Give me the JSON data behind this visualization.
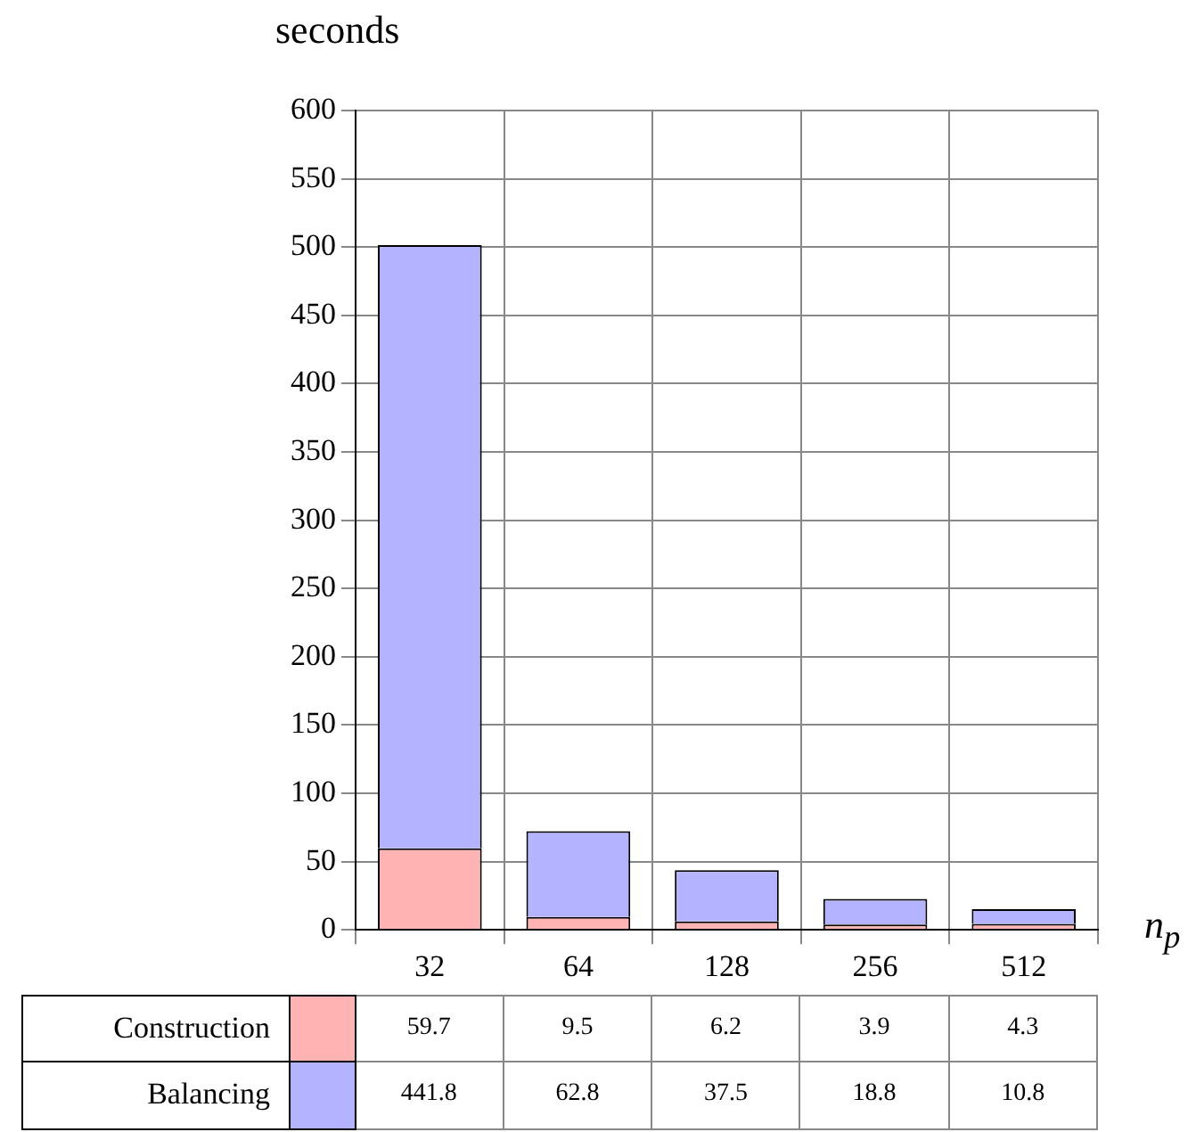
{
  "chart_data": {
    "type": "bar",
    "ylabel": "seconds",
    "xlabel": "n$_{p}$",
    "categories": [
      "32",
      "64",
      "128",
      "256",
      "512"
    ],
    "series": [
      {
        "name": "Construction",
        "color": "#ffb3b3",
        "values": [
          59.7,
          9.5,
          6.2,
          3.9,
          4.3
        ]
      },
      {
        "name": "Balancing",
        "color": "#b3b3ff",
        "values": [
          441.8,
          62.8,
          37.5,
          18.8,
          10.8
        ]
      }
    ],
    "stacked": true,
    "ylim": [
      0,
      600
    ],
    "yticks": [
      0,
      50,
      100,
      150,
      200,
      250,
      300,
      350,
      400,
      450,
      500,
      550,
      600
    ],
    "grid": true,
    "legend": "bottom",
    "data_labels": true
  }
}
